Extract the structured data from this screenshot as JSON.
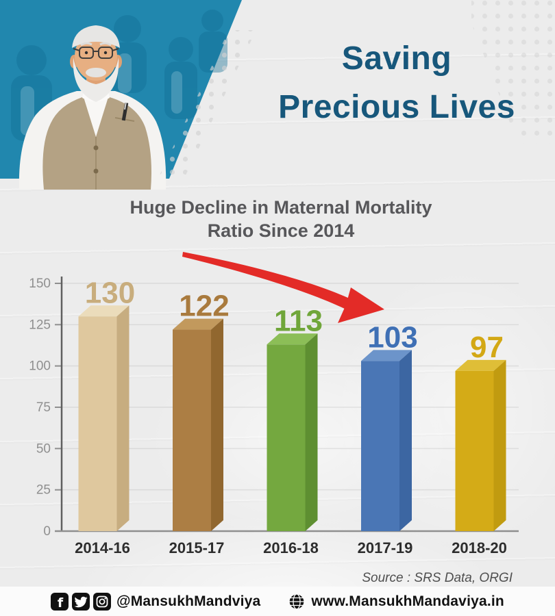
{
  "title": {
    "line1": "Saving",
    "line2": "Precious Lives",
    "color": "#17577B"
  },
  "heading": {
    "line1": "Huge Decline in Maternal Mortality",
    "line2": "Ratio Since 2014"
  },
  "source": "Source : SRS Data, ORGI",
  "footer": {
    "handle": "@MansukhMandviya",
    "website": "www.MansukhMandaviya.in",
    "icons": [
      "facebook-icon",
      "twitter-icon",
      "instagram-icon",
      "globe-icon"
    ]
  },
  "hero": {
    "panel_color": "#2187AE"
  },
  "chart_data": {
    "type": "bar",
    "title": "Huge Decline in Maternal Mortality Ratio Since 2014",
    "categories": [
      "2014-16",
      "2015-17",
      "2016-18",
      "2017-19",
      "2018-20"
    ],
    "values": [
      130,
      122,
      113,
      103,
      97
    ],
    "xlabel": "",
    "ylabel": "",
    "ylim": [
      0,
      150
    ],
    "yticks": [
      0,
      25,
      50,
      75,
      100,
      125,
      150
    ],
    "grid": true,
    "legend": false,
    "bar_style": "3d",
    "arrow_color": "#E32B27",
    "colors": [
      {
        "front": "#DFC89E",
        "top": "#EBDCBB",
        "side": "#C7AD80",
        "label": "#C8AD7D"
      },
      {
        "front": "#AC7E44",
        "top": "#C2995D",
        "side": "#91672F",
        "label": "#A97A3D"
      },
      {
        "front": "#74A83F",
        "top": "#8CBE57",
        "side": "#5E8F31",
        "label": "#70A63A"
      },
      {
        "front": "#4A76B5",
        "top": "#6C94CA",
        "side": "#3C66A2",
        "label": "#3F70B5"
      },
      {
        "front": "#D4AB17",
        "top": "#DFBE37",
        "side": "#C19B10",
        "label": "#D3A815"
      }
    ],
    "source": "Source : SRS Data, ORGI"
  }
}
